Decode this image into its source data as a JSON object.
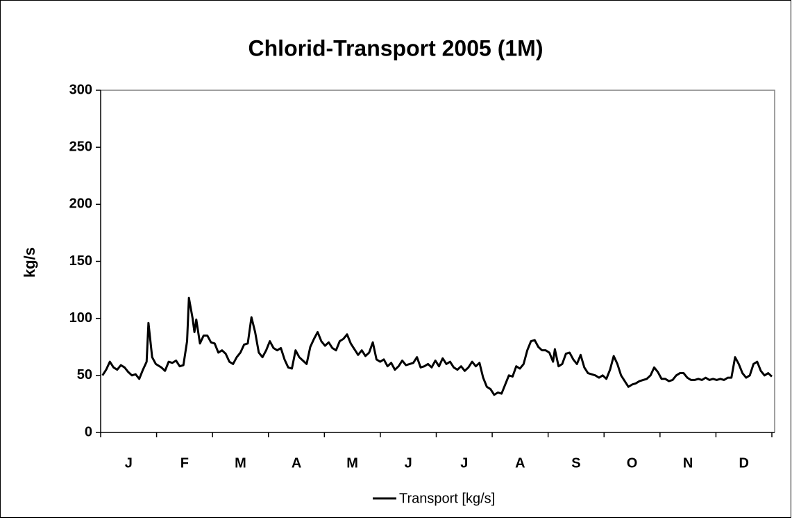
{
  "chart_data": {
    "type": "line",
    "title": "Chlorid-Transport 2005 (1M)",
    "y_label": "kg/s",
    "categories": [
      "J",
      "F",
      "M",
      "A",
      "M",
      "J",
      "J",
      "A",
      "S",
      "O",
      "N",
      "D"
    ],
    "x": [
      1,
      3,
      5,
      7,
      9,
      11,
      13,
      15,
      17,
      19,
      21,
      23,
      25,
      26,
      28,
      30,
      33,
      35,
      37,
      39,
      41,
      43,
      45,
      47,
      48,
      50,
      51,
      52,
      54,
      56,
      58,
      60,
      62,
      64,
      66,
      68,
      70,
      72,
      74,
      76,
      78,
      80,
      82,
      84,
      86,
      88,
      90,
      92,
      94,
      96,
      98,
      100,
      102,
      104,
      106,
      108,
      110,
      112,
      114,
      116,
      118,
      120,
      122,
      124,
      126,
      128,
      130,
      132,
      134,
      136,
      138,
      140,
      142,
      144,
      146,
      148,
      150,
      152,
      154,
      156,
      158,
      160,
      162,
      164,
      166,
      168,
      170,
      172,
      174,
      176,
      178,
      180,
      182,
      184,
      186,
      188,
      190,
      192,
      194,
      196,
      198,
      200,
      202,
      204,
      206,
      208,
      210,
      212,
      214,
      216,
      218,
      220,
      222,
      224,
      226,
      228,
      230,
      232,
      234,
      236,
      238,
      240,
      242,
      244,
      246,
      247,
      249,
      251,
      253,
      255,
      257,
      259,
      261,
      263,
      265,
      267,
      269,
      271,
      273,
      275,
      277,
      279,
      281,
      283,
      285,
      287,
      289,
      291,
      293,
      295,
      297,
      299,
      301,
      303,
      305,
      307,
      309,
      311,
      313,
      315,
      317,
      319,
      321,
      323,
      325,
      327,
      329,
      331,
      333,
      335,
      337,
      339,
      341,
      343,
      345,
      347,
      349,
      351,
      353,
      355,
      357,
      359,
      361,
      363,
      365
    ],
    "xlim": [
      0,
      365
    ],
    "series": [
      {
        "name": "Transport [kg/s]",
        "color": "#000000",
        "values": [
          50,
          55,
          62,
          57,
          55,
          59,
          57,
          53,
          50,
          51,
          47,
          55,
          62,
          96,
          66,
          60,
          57,
          54,
          62,
          61,
          63,
          58,
          59,
          80,
          118,
          100,
          88,
          99,
          78,
          85,
          85,
          79,
          78,
          70,
          72,
          69,
          62,
          60,
          66,
          70,
          77,
          78,
          101,
          88,
          70,
          66,
          72,
          80,
          74,
          72,
          74,
          64,
          57,
          56,
          72,
          66,
          63,
          60,
          75,
          82,
          88,
          80,
          76,
          79,
          74,
          72,
          80,
          82,
          86,
          78,
          73,
          68,
          72,
          67,
          70,
          79,
          64,
          62,
          64,
          58,
          61,
          55,
          58,
          63,
          59,
          60,
          61,
          66,
          57,
          58,
          60,
          57,
          63,
          58,
          65,
          60,
          62,
          57,
          55,
          58,
          54,
          57,
          62,
          58,
          61,
          48,
          40,
          38,
          33,
          35,
          34,
          42,
          50,
          49,
          58,
          56,
          60,
          72,
          80,
          81,
          75,
          72,
          72,
          70,
          62,
          73,
          58,
          60,
          69,
          70,
          64,
          60,
          68,
          57,
          52,
          51,
          50,
          48,
          50,
          47,
          55,
          67,
          60,
          50,
          45,
          40,
          42,
          43,
          45,
          46,
          47,
          50,
          57,
          53,
          47,
          47,
          45,
          46,
          50,
          52,
          52,
          48,
          46,
          46,
          47,
          46,
          48,
          46,
          47,
          46,
          47,
          46,
          48,
          48,
          66,
          60,
          52,
          48,
          50,
          60,
          62,
          54,
          50,
          52,
          49
        ]
      }
    ],
    "ylim": [
      0,
      300
    ],
    "yticks": [
      0,
      50,
      100,
      150,
      200,
      250,
      300
    ],
    "legend": "bottom"
  }
}
